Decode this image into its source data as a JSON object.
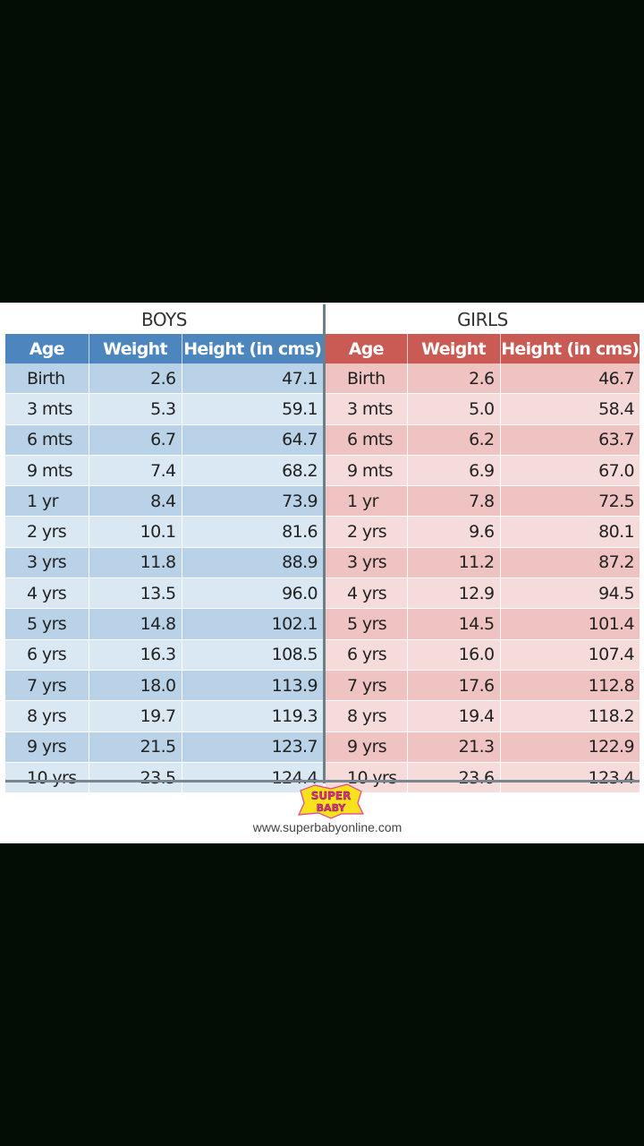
{
  "columns": [
    "Age",
    "Weight",
    "Height (in cms)"
  ],
  "boys": {
    "title": "BOYS",
    "rows": [
      [
        "Birth",
        "2.6",
        "47.1"
      ],
      [
        "3 mts",
        "5.3",
        "59.1"
      ],
      [
        "6 mts",
        "6.7",
        "64.7"
      ],
      [
        "9 mts",
        "7.4",
        "68.2"
      ],
      [
        "1 yr",
        "8.4",
        "73.9"
      ],
      [
        "2 yrs",
        "10.1",
        "81.6"
      ],
      [
        "3 yrs",
        "11.8",
        "88.9"
      ],
      [
        "4 yrs",
        "13.5",
        "96.0"
      ],
      [
        "5 yrs",
        "14.8",
        "102.1"
      ],
      [
        "6 yrs",
        "16.3",
        "108.5"
      ],
      [
        "7 yrs",
        "18.0",
        "113.9"
      ],
      [
        "8 yrs",
        "19.7",
        "119.3"
      ],
      [
        "9 yrs",
        "21.5",
        "123.7"
      ],
      [
        "10 yrs",
        "23.5",
        "124.4"
      ]
    ]
  },
  "girls": {
    "title": "GIRLS",
    "rows": [
      [
        "Birth",
        "2.6",
        "46.7"
      ],
      [
        "3 mts",
        "5.0",
        "58.4"
      ],
      [
        "6 mts",
        "6.2",
        "63.7"
      ],
      [
        "9 mts",
        "6.9",
        "67.0"
      ],
      [
        "1 yr",
        "7.8",
        "72.5"
      ],
      [
        "2 yrs",
        "9.6",
        "80.1"
      ],
      [
        "3 yrs",
        "11.2",
        "87.2"
      ],
      [
        "4 yrs",
        "12.9",
        "94.5"
      ],
      [
        "5 yrs",
        "14.5",
        "101.4"
      ],
      [
        "6 yrs",
        "16.0",
        "107.4"
      ],
      [
        "7 yrs",
        "17.6",
        "112.8"
      ],
      [
        "8 yrs",
        "19.4",
        "118.2"
      ],
      [
        "9 yrs",
        "21.3",
        "122.9"
      ],
      [
        "10 yrs",
        "23.6",
        "123.4"
      ]
    ]
  },
  "logo": {
    "line1": "SUPER",
    "line2": "BABY"
  },
  "footer": {
    "url": "www.superbabyonline.com"
  },
  "colors": {
    "boys_header": "#4d86bf",
    "girls_header": "#c95b54",
    "background": "#020d05"
  }
}
